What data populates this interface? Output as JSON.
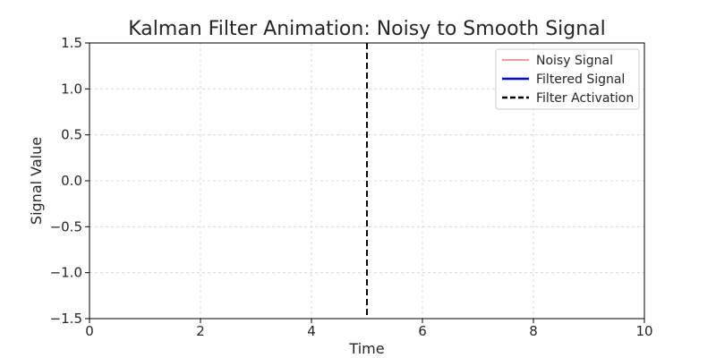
{
  "chart_data": {
    "type": "line",
    "title": "Kalman Filter Animation: Noisy to Smooth Signal",
    "xlabel": "Time",
    "ylabel": "Signal Value",
    "xlim": [
      0,
      10
    ],
    "ylim": [
      -1.5,
      1.5
    ],
    "xticks": [
      0,
      2,
      4,
      6,
      8,
      10
    ],
    "yticks": [
      -1.5,
      -1.0,
      -0.5,
      0.0,
      0.5,
      1.0,
      1.5
    ],
    "ytick_labels": [
      "−1.5",
      "−1.0",
      "−0.5",
      "0.0",
      "0.5",
      "1.0",
      "1.5"
    ],
    "grid": true,
    "legend_position": "top-right",
    "series": [
      {
        "name": "Noisy Signal",
        "color": "#e8797c",
        "style": "solid",
        "x": [],
        "y": []
      },
      {
        "name": "Filtered Signal",
        "color": "#0000ff",
        "style": "solid",
        "x": [],
        "y": []
      },
      {
        "name": "Filter Activation",
        "color": "#000000",
        "style": "dashed",
        "type": "vline",
        "x": 5
      }
    ]
  }
}
